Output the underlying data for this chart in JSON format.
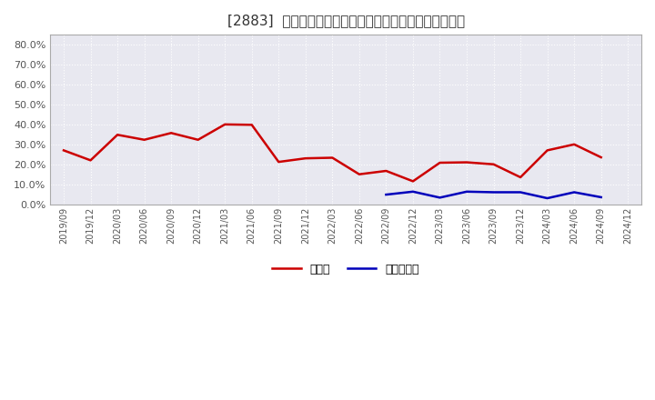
{
  "title": "[2883]  現頲金、有利子負債の総資産に対する比率の推移",
  "x_labels": [
    "2019/09",
    "2019/12",
    "2020/03",
    "2020/06",
    "2020/09",
    "2020/12",
    "2021/03",
    "2021/06",
    "2021/09",
    "2021/12",
    "2022/03",
    "2022/06",
    "2022/09",
    "2022/12",
    "2023/03",
    "2023/06",
    "2023/09",
    "2023/12",
    "2024/03",
    "2024/06",
    "2024/09",
    "2024/12"
  ],
  "cash_values": [
    0.27,
    0.22,
    0.348,
    0.323,
    0.357,
    0.323,
    0.4,
    0.398,
    0.212,
    0.23,
    0.233,
    0.15,
    0.167,
    0.115,
    0.208,
    0.21,
    0.2,
    0.135,
    0.27,
    0.3,
    0.235,
    null
  ],
  "debt_values": [
    null,
    null,
    null,
    null,
    null,
    null,
    null,
    null,
    null,
    null,
    null,
    null,
    0.048,
    0.063,
    0.033,
    0.063,
    0.06,
    0.06,
    0.03,
    0.06,
    0.035,
    null
  ],
  "cash_color": "#cc0000",
  "debt_color": "#0000bb",
  "plot_bg_color": "#e8e8f0",
  "fig_bg_color": "#ffffff",
  "grid_color": "#ffffff",
  "ylim": [
    0.0,
    0.85
  ],
  "yticks": [
    0.0,
    0.1,
    0.2,
    0.3,
    0.4,
    0.5,
    0.6,
    0.7,
    0.8
  ],
  "legend_cash": "現頲金",
  "legend_debt": "有利子負債",
  "title_fontsize": 11
}
